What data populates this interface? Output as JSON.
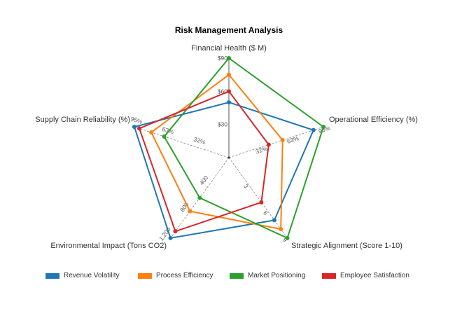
{
  "chart_data": {
    "type": "radar",
    "title": "Risk Management Analysis",
    "axes": [
      {
        "label": "Financial Health ($ M)",
        "max": 90,
        "ticks": [
          "$30",
          "$60",
          "$90"
        ]
      },
      {
        "label": "Operational Efficiency (%)",
        "max": 95,
        "ticks": [
          "32%",
          "63%",
          "95%"
        ]
      },
      {
        "label": "Strategic Alignment (Score 1-10)",
        "max": 9,
        "ticks": [
          "3",
          "6",
          "9"
        ]
      },
      {
        "label": "Environmental Impact (Tons CO2)",
        "max": 1200,
        "ticks": [
          "400",
          "800",
          "1,200"
        ]
      },
      {
        "label": "Supply Chain Reliability (%)",
        "max": 95,
        "ticks": [
          "32%",
          "63%",
          "95%"
        ]
      }
    ],
    "series": [
      {
        "name": "Revenue Volatility",
        "color": "#1f77b4",
        "values": [
          50,
          85,
          7,
          1200,
          95
        ]
      },
      {
        "name": "Process Efficiency",
        "color": "#ff7f0e",
        "values": [
          75,
          54,
          8,
          800,
          78
        ]
      },
      {
        "name": "Market Positioning",
        "color": "#2ca02c",
        "values": [
          90,
          95,
          9,
          600,
          65
        ]
      },
      {
        "name": "Employee Satisfaction",
        "color": "#d62728",
        "values": [
          60,
          40,
          5,
          1100,
          90
        ]
      }
    ],
    "legend_position": "bottom"
  }
}
